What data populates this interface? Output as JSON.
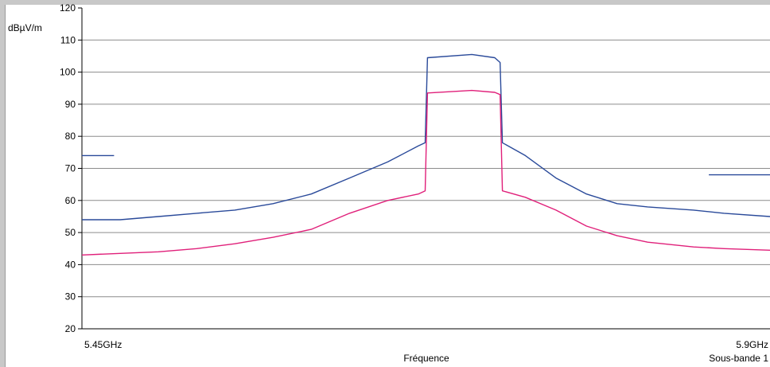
{
  "chart_data": {
    "type": "line",
    "unit_label": "dBµV/m",
    "xlabel": "Fréquence",
    "ylim": [
      20,
      120
    ],
    "y_ticks": [
      20,
      30,
      40,
      50,
      60,
      70,
      80,
      90,
      100,
      110,
      120
    ],
    "x_start_label": "5.45GHz",
    "x_end_label": "5.9GHz",
    "x_range_ghz": [
      5.45,
      5.9
    ],
    "subband_label": "Sous-bande 1",
    "grid": true,
    "colors": {
      "blue": "#2a4a9a",
      "magenta": "#e0207a"
    },
    "series": [
      {
        "color": "#2a4a9a",
        "x": [
          5.45,
          5.475,
          5.5,
          5.525,
          5.55,
          5.575,
          5.6,
          5.625,
          5.65,
          5.67,
          5.6745,
          5.676,
          5.705,
          5.72,
          5.7235,
          5.725,
          5.74,
          5.76,
          5.78,
          5.8,
          5.82,
          5.85,
          5.87,
          5.9
        ],
        "values": [
          54,
          54,
          55,
          56,
          57,
          59,
          62,
          67,
          72,
          77,
          78,
          104.5,
          105.5,
          104.5,
          103,
          78,
          74,
          67,
          62,
          59,
          58,
          57,
          56,
          55
        ]
      },
      {
        "color": "#e0207a",
        "x": [
          5.45,
          5.475,
          5.5,
          5.525,
          5.55,
          5.575,
          5.6,
          5.625,
          5.65,
          5.67,
          5.6745,
          5.676,
          5.705,
          5.72,
          5.7235,
          5.725,
          5.74,
          5.76,
          5.78,
          5.8,
          5.82,
          5.85,
          5.87,
          5.9
        ],
        "values": [
          43,
          43.5,
          44,
          45,
          46.5,
          48.5,
          51,
          56,
          60,
          62,
          63,
          93.5,
          94.3,
          93.7,
          93,
          63,
          61,
          57,
          52,
          49,
          47,
          45.5,
          45,
          44.5
        ]
      },
      {
        "color": "#2a4a9a",
        "x": [
          5.45,
          5.471
        ],
        "values": [
          74,
          74
        ]
      },
      {
        "color": "#2a4a9a",
        "x": [
          5.86,
          5.9
        ],
        "values": [
          68,
          68
        ]
      }
    ]
  }
}
